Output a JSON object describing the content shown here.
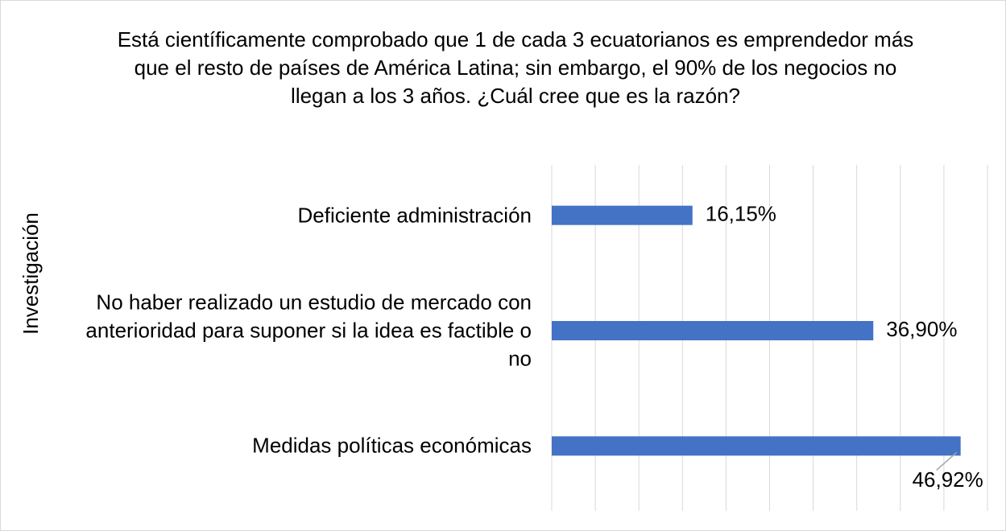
{
  "chart_data": {
    "type": "bar",
    "orientation": "horizontal",
    "title": "Está científicamente comprobado que 1 de cada 3 ecuatorianos es emprendedor más que el resto de países de América Latina; sin embargo, el 90% de los negocios no llegan a los 3 años. ¿Cuál cree que es la razón?",
    "y_label": "Investigación",
    "categories": [
      "Deficiente administración",
      "No haber realizado un estudio de mercado con anterioridad para suponer si la idea es factible o no",
      "Medidas políticas económicas"
    ],
    "values": [
      16.15,
      36.9,
      46.92
    ],
    "value_labels": [
      "16,15%",
      "36,90%",
      "46,92%"
    ],
    "color": "#4472c4",
    "xlim": [
      0,
      50
    ],
    "xticks": [
      0,
      5,
      10,
      15,
      20,
      25,
      30,
      35,
      40,
      45,
      50
    ],
    "grid": true
  }
}
